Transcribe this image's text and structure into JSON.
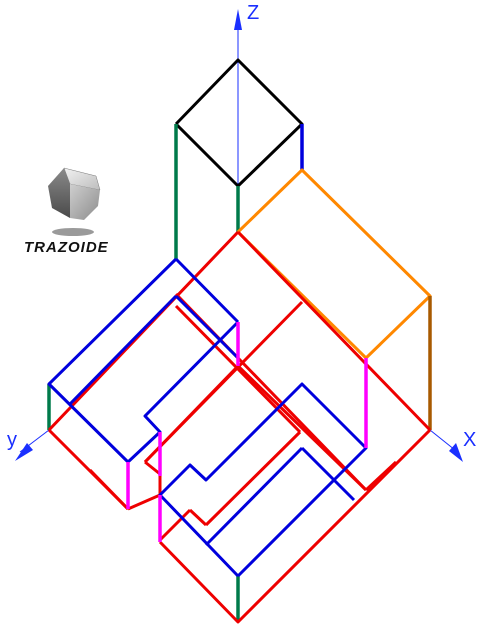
{
  "axes": {
    "z_label": "Z",
    "y_label": "y",
    "x_label": "X",
    "axis_color": "#1a2fff"
  },
  "logo": {
    "text": "TRAZOIDE",
    "icon": "cube-icon"
  },
  "colors": {
    "black": "#000000",
    "blue": "#0000dd",
    "red": "#ee0000",
    "green": "#007a4a",
    "orange": "#ff8800",
    "magenta": "#ff00ff",
    "brown": "#a85a00"
  }
}
